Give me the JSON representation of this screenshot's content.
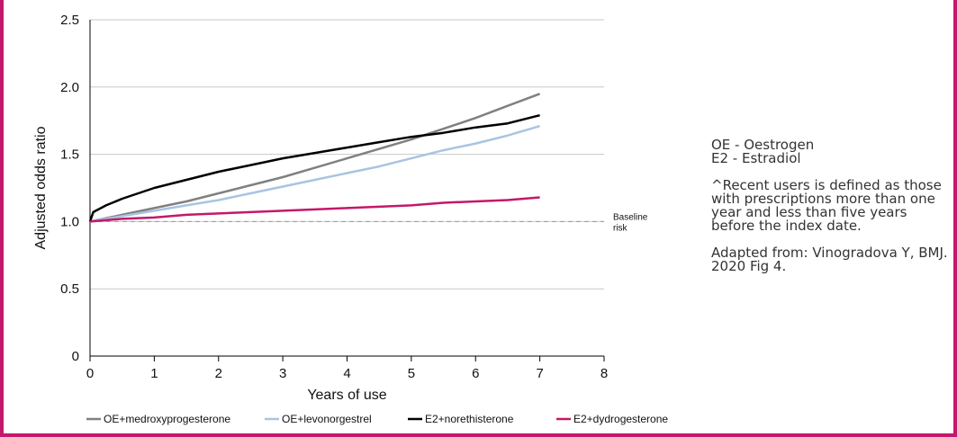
{
  "chart_data": {
    "type": "line",
    "xlabel": "Years of use",
    "ylabel": "Adjusted odds ratio",
    "xlim": [
      0,
      8
    ],
    "ylim": [
      0,
      2.5
    ],
    "xticks": [
      "0",
      "1",
      "2",
      "3",
      "4",
      "5",
      "6",
      "7",
      "8"
    ],
    "yticks": [
      "0",
      "0.5",
      "1.0",
      "1.5",
      "2.0",
      "2.5"
    ],
    "grid": true,
    "legend_position": "bottom",
    "baseline": {
      "value": 1.0,
      "label_line1": "Baseline",
      "label_line2": "risk"
    },
    "series": [
      {
        "name": "OE+medroxyprogesterone",
        "color": "#808080",
        "x": [
          0,
          0.5,
          1,
          1.5,
          2,
          2.5,
          3,
          3.5,
          4,
          4.5,
          5,
          5.5,
          6,
          6.5,
          7
        ],
        "y": [
          1.0,
          1.05,
          1.1,
          1.15,
          1.21,
          1.27,
          1.33,
          1.4,
          1.47,
          1.54,
          1.61,
          1.69,
          1.77,
          1.86,
          1.95
        ]
      },
      {
        "name": "OE+levonorgestrel",
        "color": "#a9c4e2",
        "x": [
          0,
          0.5,
          1,
          1.5,
          2,
          2.5,
          3,
          3.5,
          4,
          4.5,
          5,
          5.5,
          6,
          6.5,
          7
        ],
        "y": [
          1.0,
          1.04,
          1.08,
          1.12,
          1.16,
          1.21,
          1.26,
          1.31,
          1.36,
          1.41,
          1.47,
          1.53,
          1.58,
          1.64,
          1.71
        ]
      },
      {
        "name": "E2+norethisterone",
        "color": "#000000",
        "x": [
          0,
          0.05,
          0.25,
          0.5,
          1,
          1.5,
          2,
          2.5,
          3,
          3.5,
          4,
          4.5,
          5,
          5.5,
          6,
          6.5,
          7
        ],
        "y": [
          1.0,
          1.07,
          1.12,
          1.17,
          1.25,
          1.31,
          1.37,
          1.42,
          1.47,
          1.51,
          1.55,
          1.59,
          1.63,
          1.66,
          1.7,
          1.73,
          1.79
        ]
      },
      {
        "name": "E2+dydrogesterone",
        "color": "#c4186a",
        "x": [
          0,
          0.5,
          1,
          1.5,
          2,
          2.5,
          3,
          3.5,
          4,
          4.5,
          5,
          5.5,
          6,
          6.5,
          7
        ],
        "y": [
          1.0,
          1.02,
          1.03,
          1.05,
          1.06,
          1.07,
          1.08,
          1.09,
          1.1,
          1.11,
          1.12,
          1.14,
          1.15,
          1.16,
          1.18
        ]
      }
    ]
  },
  "notes": {
    "abbr_line1": "OE - Oestrogen",
    "abbr_line2": "E2 - Estradiol",
    "definition": "^Recent users is defined as those with prescriptions more than one year and less than five years before the index date.",
    "source": "Adapted from: Vinogradova Y, BMJ. 2020 Fig 4."
  },
  "colors": {
    "frame": "#c4186a",
    "grid": "#c8c8c8",
    "baseline": "#999999"
  }
}
